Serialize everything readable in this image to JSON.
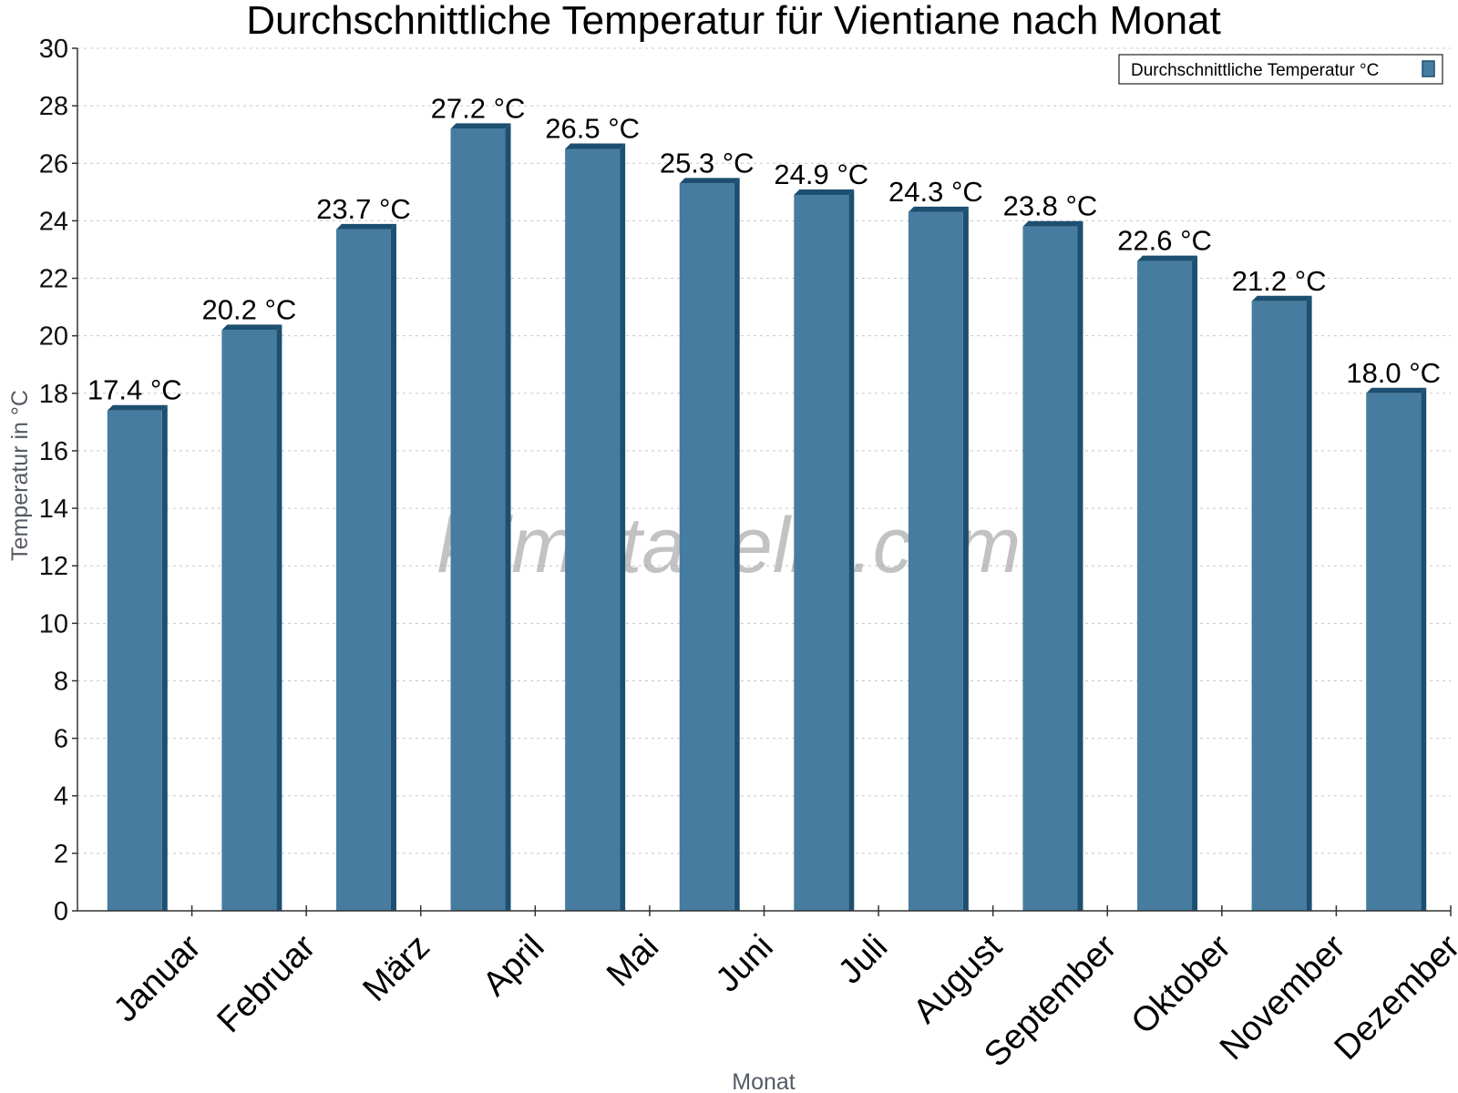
{
  "chart_data": {
    "type": "bar",
    "title": "Durchschnittliche Temperatur für Vientiane nach Monat",
    "xlabel": "Monat",
    "ylabel": "Temperatur in °C",
    "ylim": [
      0,
      30
    ],
    "yticks": [
      "0",
      "2",
      "4",
      "6",
      "8",
      "10",
      "12",
      "14",
      "16",
      "18",
      "20",
      "22",
      "24",
      "26",
      "28",
      "30"
    ],
    "grid": true,
    "legend_position": "top-right",
    "categories": [
      "Januar",
      "Februar",
      "März",
      "April",
      "Mai",
      "Juni",
      "Juli",
      "August",
      "September",
      "Oktober",
      "November",
      "Dezember"
    ],
    "series": [
      {
        "name": "Durchschnittliche Temperatur °C",
        "values": [
          17.4,
          20.2,
          23.7,
          27.2,
          26.5,
          25.3,
          24.9,
          24.3,
          23.8,
          22.6,
          21.2,
          18.0
        ],
        "labels": [
          "17.4 °C",
          "20.2 °C",
          "23.7 °C",
          "27.2 °C",
          "26.5 °C",
          "25.3 °C",
          "24.9 °C",
          "24.3 °C",
          "23.8 °C",
          "22.6 °C",
          "21.2 °C",
          "18.0 °C"
        ],
        "color": "#467c9f",
        "edge_color": "#1c4f70"
      }
    ]
  },
  "watermark": "klimatabelle.com"
}
